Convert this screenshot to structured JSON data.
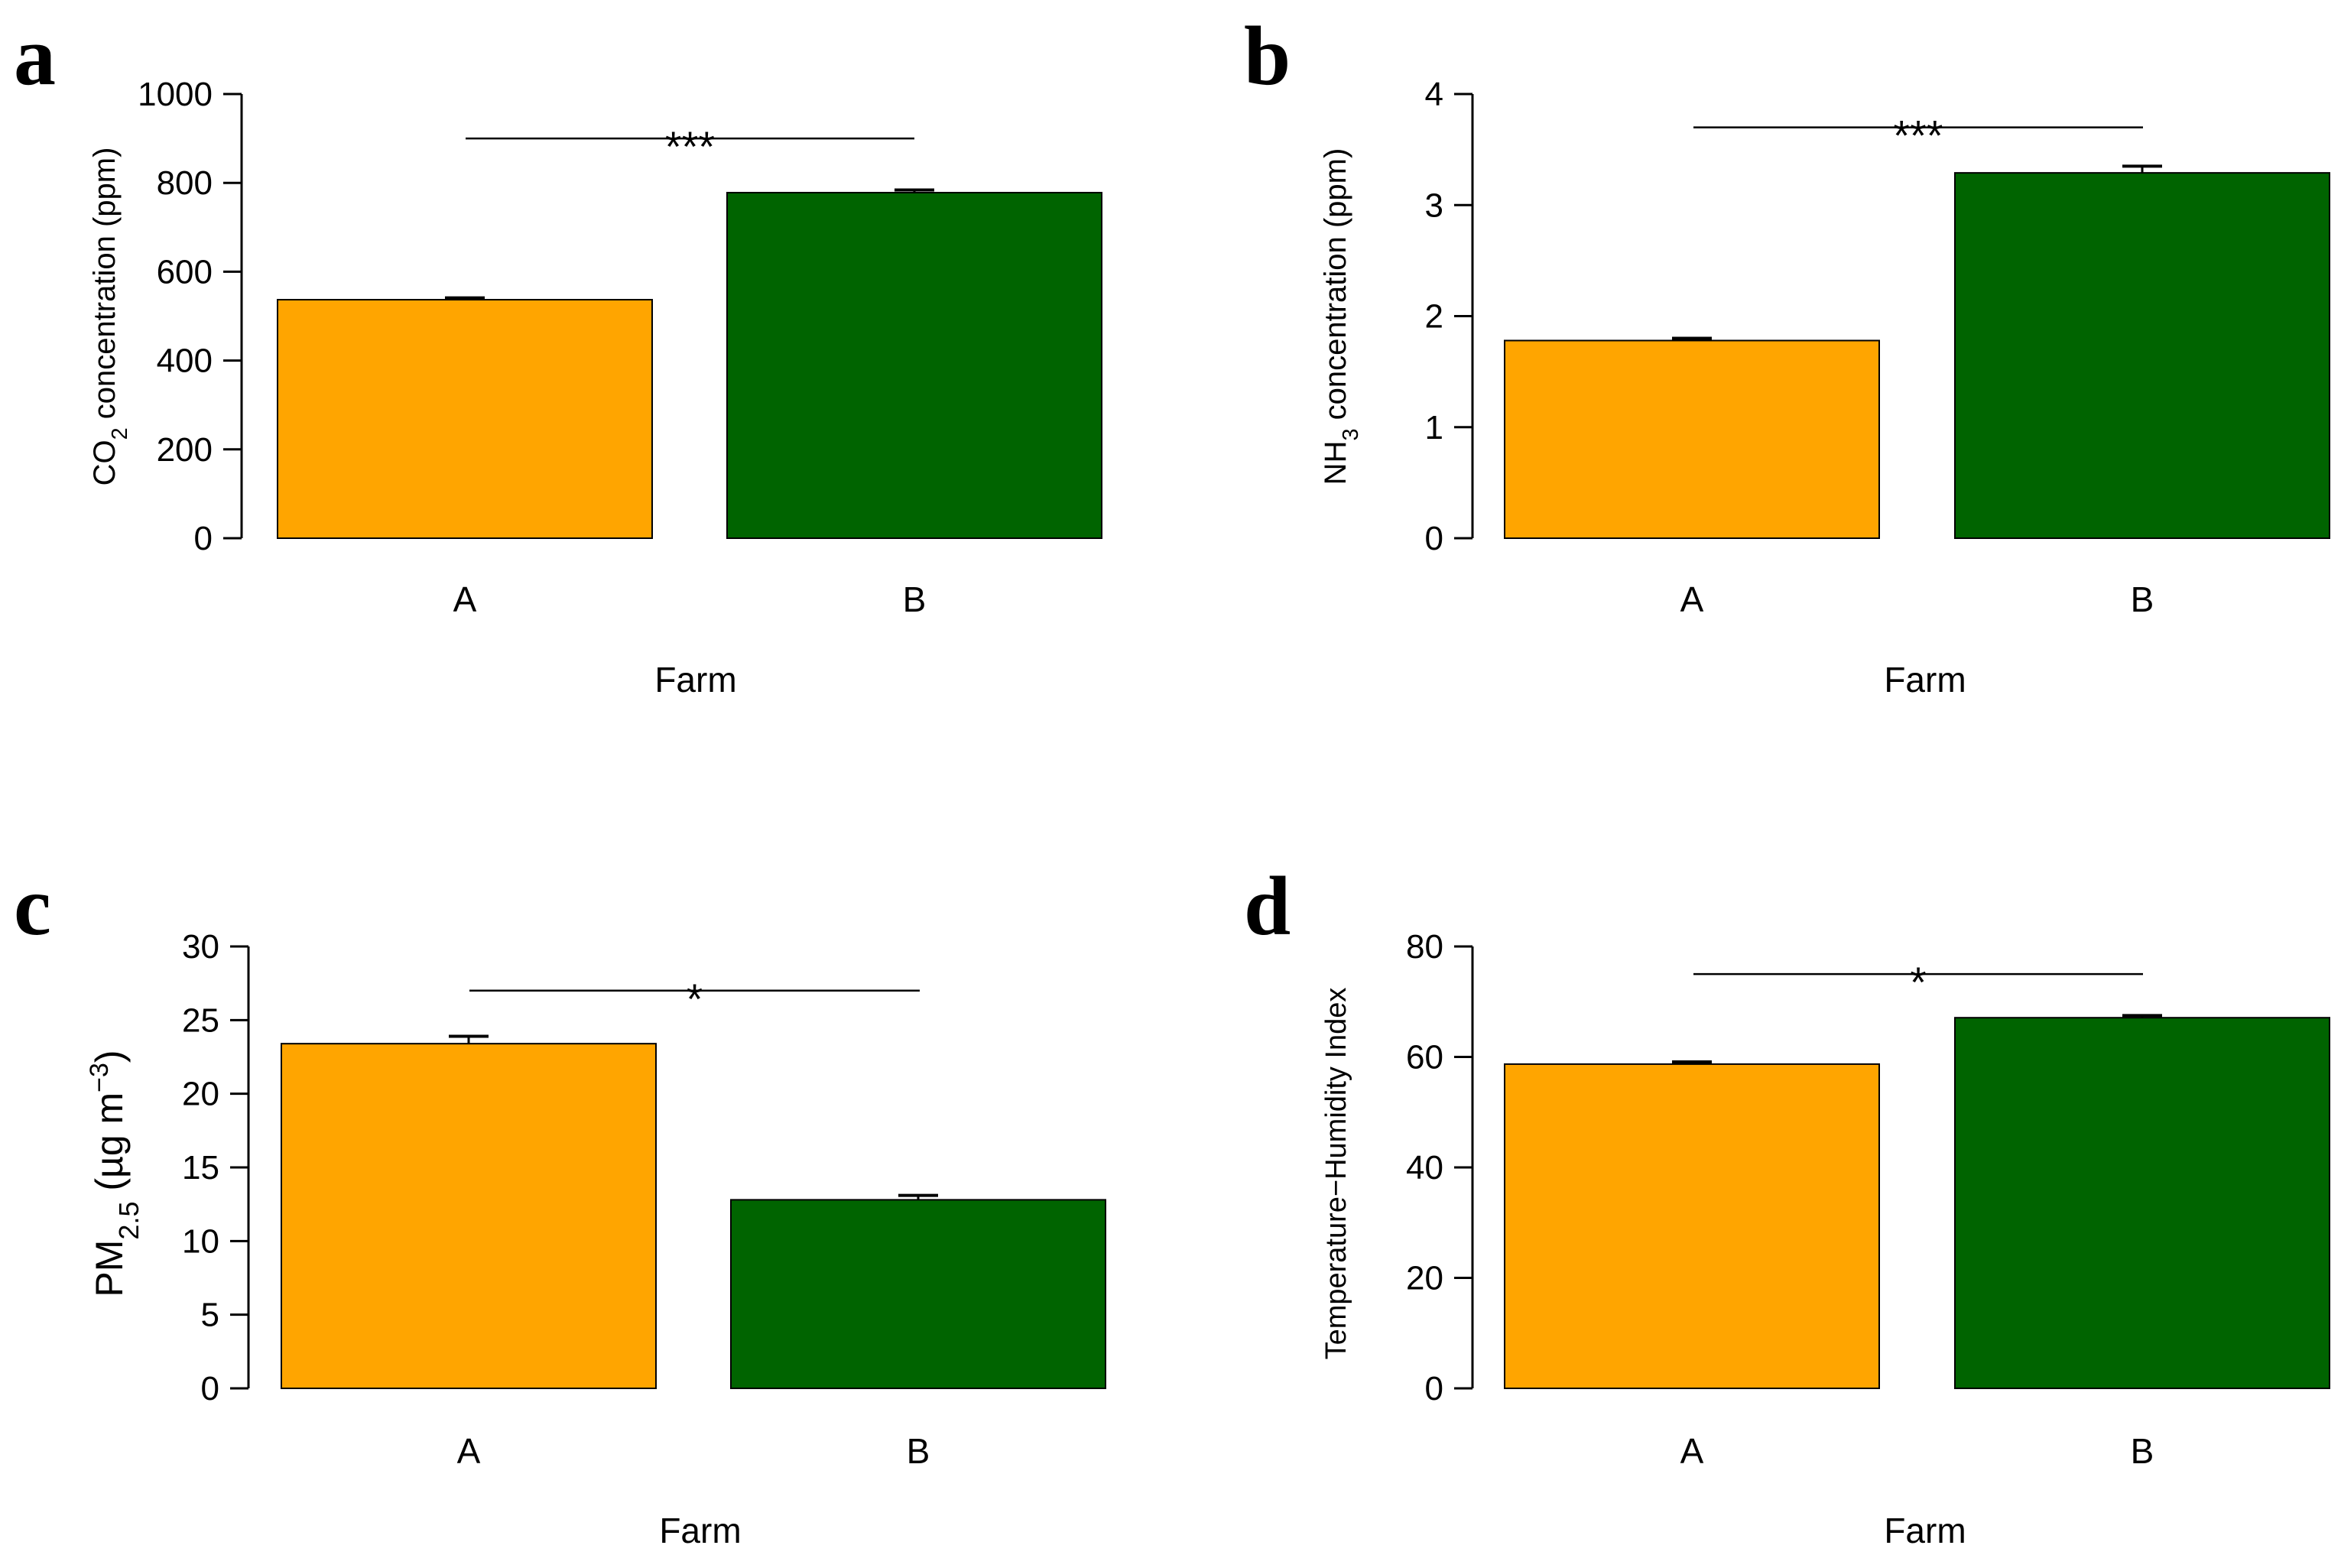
{
  "colors": {
    "farm_a": "#FFA500",
    "farm_b": "#006400",
    "axis": "#000000"
  },
  "chart_data": [
    {
      "type": "bar",
      "panel": "a",
      "categories": [
        "A",
        "B"
      ],
      "values": [
        537,
        778
      ],
      "errors": [
        4,
        6
      ],
      "xlabel": "Farm",
      "ylabel": {
        "main": "CO",
        "sub": "2",
        "rest": " concentration (ppm)"
      },
      "ylim": [
        0,
        1000
      ],
      "yticks": [
        0,
        200,
        400,
        600,
        800,
        1000
      ],
      "significance": {
        "label": "***",
        "level": 900
      }
    },
    {
      "type": "bar",
      "panel": "b",
      "categories": [
        "A",
        "B"
      ],
      "values": [
        1.78,
        3.29
      ],
      "errors": [
        0.02,
        0.06
      ],
      "xlabel": "Farm",
      "ylabel": {
        "main": "NH",
        "sub": "3",
        "rest": " concentration (ppm)"
      },
      "ylim": [
        0,
        4
      ],
      "yticks": [
        0,
        1,
        2,
        3,
        4
      ],
      "significance": {
        "label": "***",
        "level": 3.7
      }
    },
    {
      "type": "bar",
      "panel": "c",
      "categories": [
        "A",
        "B"
      ],
      "values": [
        23.4,
        12.8
      ],
      "errors": [
        0.5,
        0.3
      ],
      "xlabel": "Farm",
      "ylabel": {
        "main": "PM",
        "sub": "2.5",
        "rest": " (µg m",
        "sup": "−3",
        "close": ")"
      },
      "ylim": [
        0,
        30
      ],
      "yticks": [
        0,
        5,
        10,
        15,
        20,
        25,
        30
      ],
      "significance": {
        "label": "*",
        "level": 27
      }
    },
    {
      "type": "bar",
      "panel": "d",
      "categories": [
        "A",
        "B"
      ],
      "values": [
        58.7,
        67.1
      ],
      "errors": [
        0.4,
        0.4
      ],
      "xlabel": "Farm",
      "ylabel": {
        "main": "Temperature−Humidity Index"
      },
      "ylim": [
        0,
        80
      ],
      "yticks": [
        0,
        20,
        40,
        60,
        80
      ],
      "significance": {
        "label": "*",
        "level": 75
      }
    }
  ]
}
